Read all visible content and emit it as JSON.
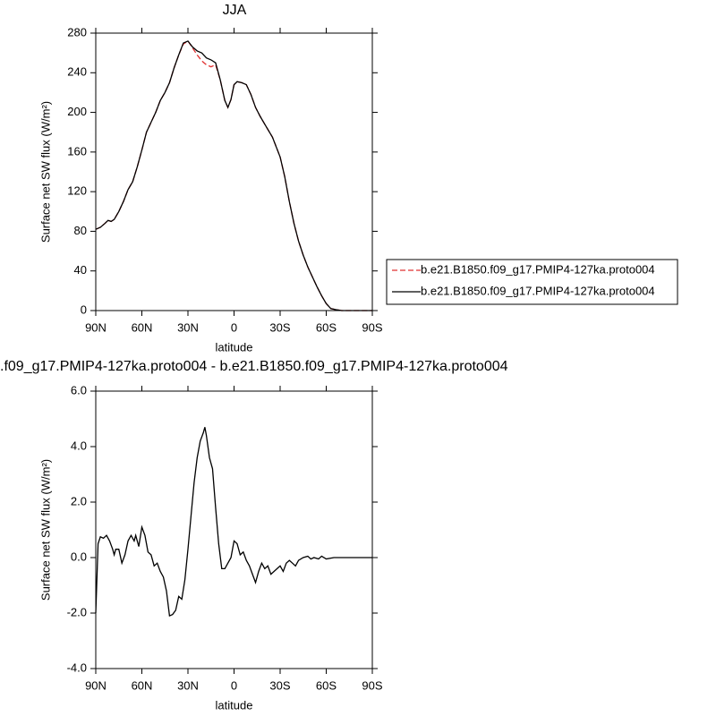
{
  "chart_data": [
    {
      "type": "line",
      "title": "JJA",
      "xlabel": "latitude",
      "ylabel": "Surface net SW flux (W/m²)",
      "xlim": [
        90,
        -90
      ],
      "xticks": [
        {
          "value": 90,
          "label": "90N"
        },
        {
          "value": 60,
          "label": "60N"
        },
        {
          "value": 30,
          "label": "30N"
        },
        0,
        {
          "value": -30,
          "label": "30S"
        },
        {
          "value": -60,
          "label": "60S"
        },
        {
          "value": -90,
          "label": "90S"
        }
      ],
      "ylim": [
        0,
        280
      ],
      "yticks": [
        0,
        40,
        80,
        120,
        160,
        200,
        240,
        280
      ],
      "legend": "right",
      "x": [
        90,
        87,
        84,
        82,
        80,
        78,
        75,
        72,
        69,
        66,
        63,
        60,
        57,
        54,
        51,
        48,
        45,
        42,
        39,
        36,
        33,
        30,
        27,
        24,
        21,
        18,
        15,
        12,
        9,
        6,
        4,
        2,
        0,
        -2,
        -5,
        -8,
        -11,
        -14,
        -17,
        -20,
        -25,
        -30,
        -33,
        -36,
        -39,
        -42,
        -45,
        -48,
        -51,
        -54,
        -57,
        -60,
        -63,
        -66,
        -70,
        -75,
        -80,
        -85,
        -90
      ],
      "series": [
        {
          "name": "b.e21.B1850.f09_g17.PMIP4-127ka.proto004",
          "color": "#e03030",
          "dash": true,
          "values": [
            82,
            84,
            88,
            91,
            90,
            92,
            100,
            110,
            122,
            130,
            145,
            162,
            180,
            190,
            200,
            212,
            220,
            230,
            245,
            258,
            269,
            272,
            265,
            258,
            252,
            248,
            246,
            248,
            233,
            212,
            205,
            213,
            228,
            231,
            230,
            228,
            218,
            205,
            196,
            188,
            175,
            155,
            135,
            110,
            88,
            70,
            56,
            44,
            34,
            24,
            15,
            7,
            2,
            1,
            0,
            0,
            0,
            0,
            0
          ]
        },
        {
          "name": "b.e21.B1850.f09_g17.PMIP4-127ka.proto004",
          "color": "#000000",
          "dash": false,
          "values": [
            82,
            84,
            88,
            91,
            90,
            92,
            100,
            110,
            122,
            130,
            145,
            162,
            180,
            190,
            200,
            212,
            220,
            230,
            245,
            258,
            270,
            272,
            266,
            262,
            260,
            255,
            253,
            250,
            233,
            212,
            205,
            213,
            228,
            231,
            230,
            228,
            218,
            205,
            196,
            188,
            175,
            155,
            135,
            110,
            88,
            70,
            56,
            44,
            34,
            24,
            15,
            7,
            2,
            1,
            0,
            0,
            0,
            0,
            0
          ]
        }
      ]
    },
    {
      "type": "line",
      "title": ".f09_g17.PMIP4-127ka.proto004 - b.e21.B1850.f09_g17.PMIP4-127ka.proto004",
      "xlabel": "latitude",
      "ylabel": "Surface net SW flux (W/m²)",
      "xlim": [
        90,
        -90
      ],
      "xticks": [
        {
          "value": 90,
          "label": "90N"
        },
        {
          "value": 60,
          "label": "60N"
        },
        {
          "value": 30,
          "label": "30N"
        },
        0,
        {
          "value": -30,
          "label": "30S"
        },
        {
          "value": -60,
          "label": "60S"
        },
        {
          "value": -90,
          "label": "90S"
        }
      ],
      "ylim": [
        -4,
        6
      ],
      "yticks": [
        {
          "value": -4,
          "label": "-4.0"
        },
        {
          "value": -2,
          "label": "-2.0"
        },
        {
          "value": 0,
          "label": "0.0"
        },
        {
          "value": 2,
          "label": "2.0"
        },
        {
          "value": 4,
          "label": "4.0"
        },
        {
          "value": 6,
          "label": "6.0"
        }
      ],
      "x": [
        90,
        88.5,
        87,
        85,
        83,
        81,
        79,
        78,
        77,
        75,
        73,
        71,
        69,
        67,
        65,
        64,
        62,
        60,
        58,
        56,
        54,
        52,
        50,
        48,
        46,
        44,
        42,
        40,
        38,
        36,
        34,
        32,
        30,
        28,
        26,
        24,
        22,
        20,
        19,
        18,
        16,
        14,
        12,
        10,
        8,
        6,
        4,
        2,
        0,
        -2,
        -4,
        -6,
        -8,
        -10,
        -12,
        -14,
        -16,
        -18,
        -20,
        -22,
        -24,
        -26,
        -28,
        -30,
        -32,
        -34,
        -36,
        -38,
        -40,
        -42,
        -45,
        -48,
        -50,
        -52,
        -55,
        -57,
        -60,
        -65,
        -70,
        -80,
        -90
      ],
      "series": [
        {
          "color": "#000000",
          "dash": false,
          "values": [
            -2.0,
            0.5,
            0.75,
            0.7,
            0.8,
            0.6,
            0.3,
            0.1,
            0.3,
            0.3,
            -0.2,
            0.1,
            0.6,
            0.8,
            0.6,
            0.8,
            0.4,
            1.1,
            0.8,
            0.2,
            0.1,
            -0.3,
            -0.2,
            -0.5,
            -0.7,
            -1.2,
            -2.1,
            -2.05,
            -1.9,
            -1.4,
            -1.5,
            -0.8,
            0.3,
            1.5,
            2.7,
            3.6,
            4.2,
            4.5,
            4.7,
            4.4,
            3.6,
            3.2,
            1.8,
            0.5,
            -0.4,
            -0.4,
            -0.2,
            0.0,
            0.6,
            0.5,
            0.1,
            0.2,
            -0.1,
            -0.3,
            -0.6,
            -0.9,
            -0.5,
            -0.2,
            -0.4,
            -0.3,
            -0.6,
            -0.5,
            -0.4,
            -0.3,
            -0.5,
            -0.2,
            -0.1,
            -0.2,
            -0.3,
            -0.1,
            0.0,
            0.05,
            -0.05,
            0.0,
            -0.05,
            0.05,
            -0.05,
            0.0,
            0.0,
            0.0,
            0.0
          ]
        }
      ]
    }
  ]
}
